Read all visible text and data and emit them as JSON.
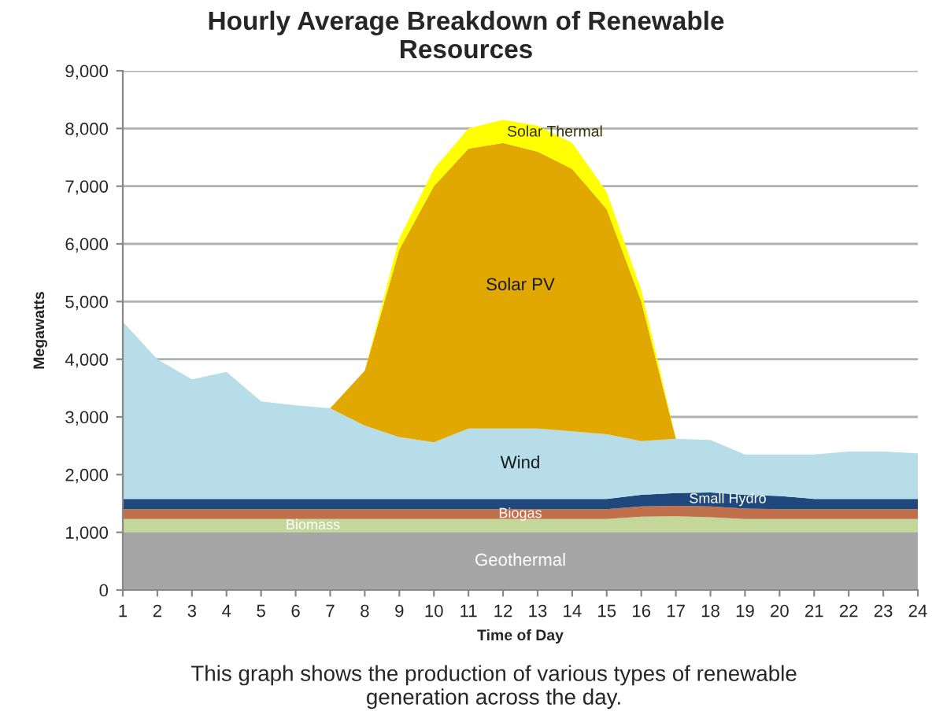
{
  "chart_data": {
    "type": "area",
    "stacked": true,
    "title": "Hourly Average Breakdown of Renewable\nResources",
    "xlabel": "Time of Day",
    "ylabel": "Megawatts",
    "x": [
      1,
      2,
      3,
      4,
      5,
      6,
      7,
      8,
      9,
      10,
      11,
      12,
      13,
      14,
      15,
      16,
      17,
      18,
      19,
      20,
      21,
      22,
      23,
      24
    ],
    "series": [
      {
        "name": "Geothermal",
        "color": "#a6a6a6",
        "values": [
          1000,
          1000,
          1000,
          1000,
          1000,
          1000,
          1000,
          1000,
          1000,
          1000,
          1000,
          1000,
          1000,
          1000,
          1000,
          1000,
          1000,
          1000,
          1000,
          1000,
          1000,
          1000,
          1000,
          1000
        ]
      },
      {
        "name": "Biomass",
        "color": "#c4d79b",
        "values": [
          230,
          230,
          230,
          230,
          230,
          230,
          230,
          230,
          230,
          230,
          230,
          230,
          230,
          230,
          230,
          270,
          280,
          260,
          230,
          230,
          230,
          230,
          230,
          230
        ]
      },
      {
        "name": "Biogas",
        "color": "#c0704a",
        "values": [
          170,
          170,
          170,
          170,
          170,
          170,
          170,
          170,
          170,
          170,
          170,
          170,
          170,
          170,
          170,
          180,
          180,
          190,
          180,
          170,
          170,
          170,
          170,
          170
        ]
      },
      {
        "name": "Small Hydro",
        "color": "#1f497d",
        "values": [
          180,
          180,
          180,
          180,
          180,
          180,
          180,
          180,
          180,
          180,
          180,
          180,
          180,
          180,
          180,
          200,
          220,
          240,
          240,
          230,
          180,
          180,
          180,
          180
        ]
      },
      {
        "name": "Wind",
        "color": "#b7dde8",
        "values": [
          3070,
          2420,
          2070,
          2200,
          1690,
          1620,
          1570,
          1270,
          1070,
          980,
          1220,
          1220,
          1220,
          1170,
          1120,
          930,
          940,
          910,
          700,
          720,
          770,
          820,
          820,
          790
        ]
      },
      {
        "name": "Solar PV",
        "color": "#e0a800",
        "values": [
          0,
          0,
          0,
          0,
          0,
          0,
          0,
          950,
          3250,
          4440,
          4850,
          4950,
          4800,
          4550,
          3900,
          2420,
          0,
          0,
          0,
          0,
          0,
          0,
          0,
          0
        ]
      },
      {
        "name": "Solar Thermal",
        "color": "#ffff00",
        "values": [
          0,
          0,
          0,
          0,
          0,
          0,
          0,
          0,
          200,
          300,
          350,
          400,
          450,
          450,
          300,
          200,
          0,
          0,
          0,
          0,
          0,
          0,
          0,
          0
        ]
      }
    ],
    "xlim": [
      1,
      24
    ],
    "xticks": [
      1,
      2,
      3,
      4,
      5,
      6,
      7,
      8,
      9,
      10,
      11,
      12,
      13,
      14,
      15,
      16,
      17,
      18,
      19,
      20,
      21,
      22,
      23,
      24
    ],
    "ylim": [
      0,
      9000
    ],
    "yticks": [
      {
        "value": 0,
        "label": "0"
      },
      {
        "value": 1000,
        "label": "1,000"
      },
      {
        "value": 2000,
        "label": "2,000"
      },
      {
        "value": 3000,
        "label": "3,000"
      },
      {
        "value": 4000,
        "label": "4,000"
      },
      {
        "value": 5000,
        "label": "5,000"
      },
      {
        "value": 6000,
        "label": "6,000"
      },
      {
        "value": 7000,
        "label": "7,000"
      },
      {
        "value": 8000,
        "label": "8,000"
      },
      {
        "value": 9000,
        "label": "9,000"
      }
    ],
    "grid": "y",
    "legend": false,
    "annotations": [
      "This graph shows the production of various types of renewable\ngeneration across the day."
    ]
  }
}
